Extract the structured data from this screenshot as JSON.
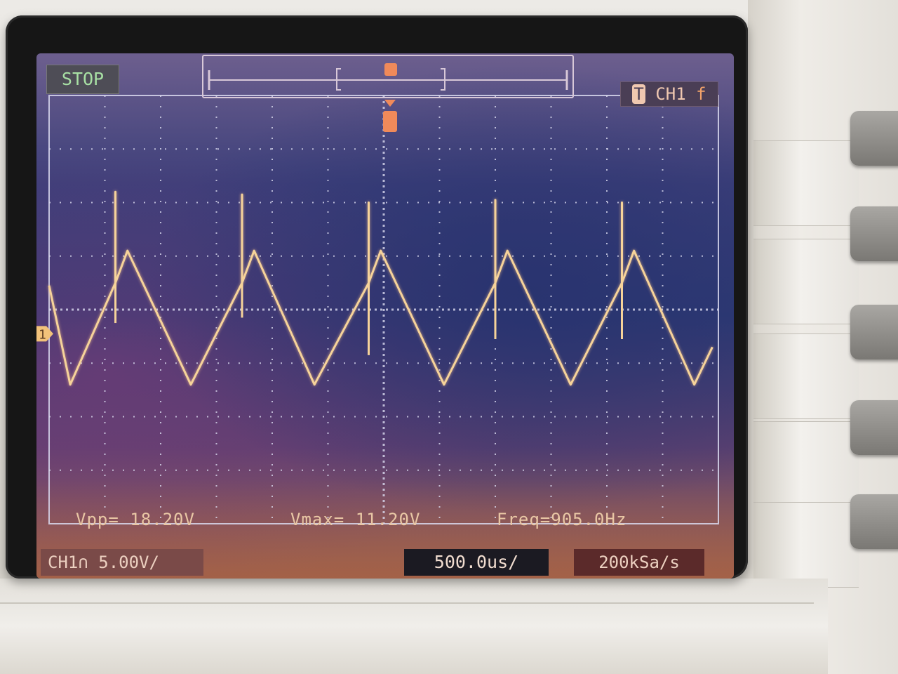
{
  "status": "STOP",
  "trigger": {
    "channel": "CH1",
    "edge_glyph": "f",
    "marker": "T"
  },
  "channel_marker": "1",
  "measurements": {
    "vpp": "Vpp= 18.20V",
    "vmax": "Vmax= 11.20V",
    "freq": "Freq=905.0Hz"
  },
  "settings": {
    "ch1_scale": "CH1∩ 5.00V/",
    "timebase": "500.0us/",
    "sample_rate": "200kSa/s"
  },
  "colors": {
    "trace": "#f6d39a",
    "grid": "#d9d9ee",
    "stop_text": "#a8e0a4"
  },
  "waveform": {
    "shape": "triangle",
    "y_units": "divisions",
    "points": [
      [
        0.0,
        0.45
      ],
      [
        0.35,
        -1.4
      ],
      [
        1.1,
        0.5
      ],
      [
        1.1,
        2.2
      ],
      [
        1.1,
        0.5
      ],
      [
        1.3,
        1.1
      ],
      [
        2.35,
        -1.4
      ],
      [
        3.2,
        0.5
      ],
      [
        3.2,
        2.15
      ],
      [
        3.2,
        0.5
      ],
      [
        3.4,
        1.1
      ],
      [
        4.4,
        -1.4
      ],
      [
        5.3,
        0.5
      ],
      [
        5.3,
        2.0
      ],
      [
        5.3,
        0.5
      ],
      [
        5.5,
        1.1
      ],
      [
        6.55,
        -1.4
      ],
      [
        7.4,
        0.5
      ],
      [
        7.4,
        2.05
      ],
      [
        7.4,
        0.5
      ],
      [
        7.6,
        1.1
      ],
      [
        8.65,
        -1.4
      ],
      [
        9.5,
        0.5
      ],
      [
        9.5,
        2.0
      ],
      [
        9.5,
        0.5
      ],
      [
        9.7,
        1.1
      ],
      [
        10.7,
        -1.4
      ],
      [
        11.0,
        -0.7
      ]
    ],
    "spike_tails": [
      [
        1.1,
        0.5,
        -0.25
      ],
      [
        3.2,
        0.5,
        -0.15
      ],
      [
        5.3,
        0.5,
        -0.85
      ],
      [
        7.4,
        0.5,
        -0.55
      ],
      [
        9.5,
        0.5,
        -0.55
      ]
    ]
  }
}
